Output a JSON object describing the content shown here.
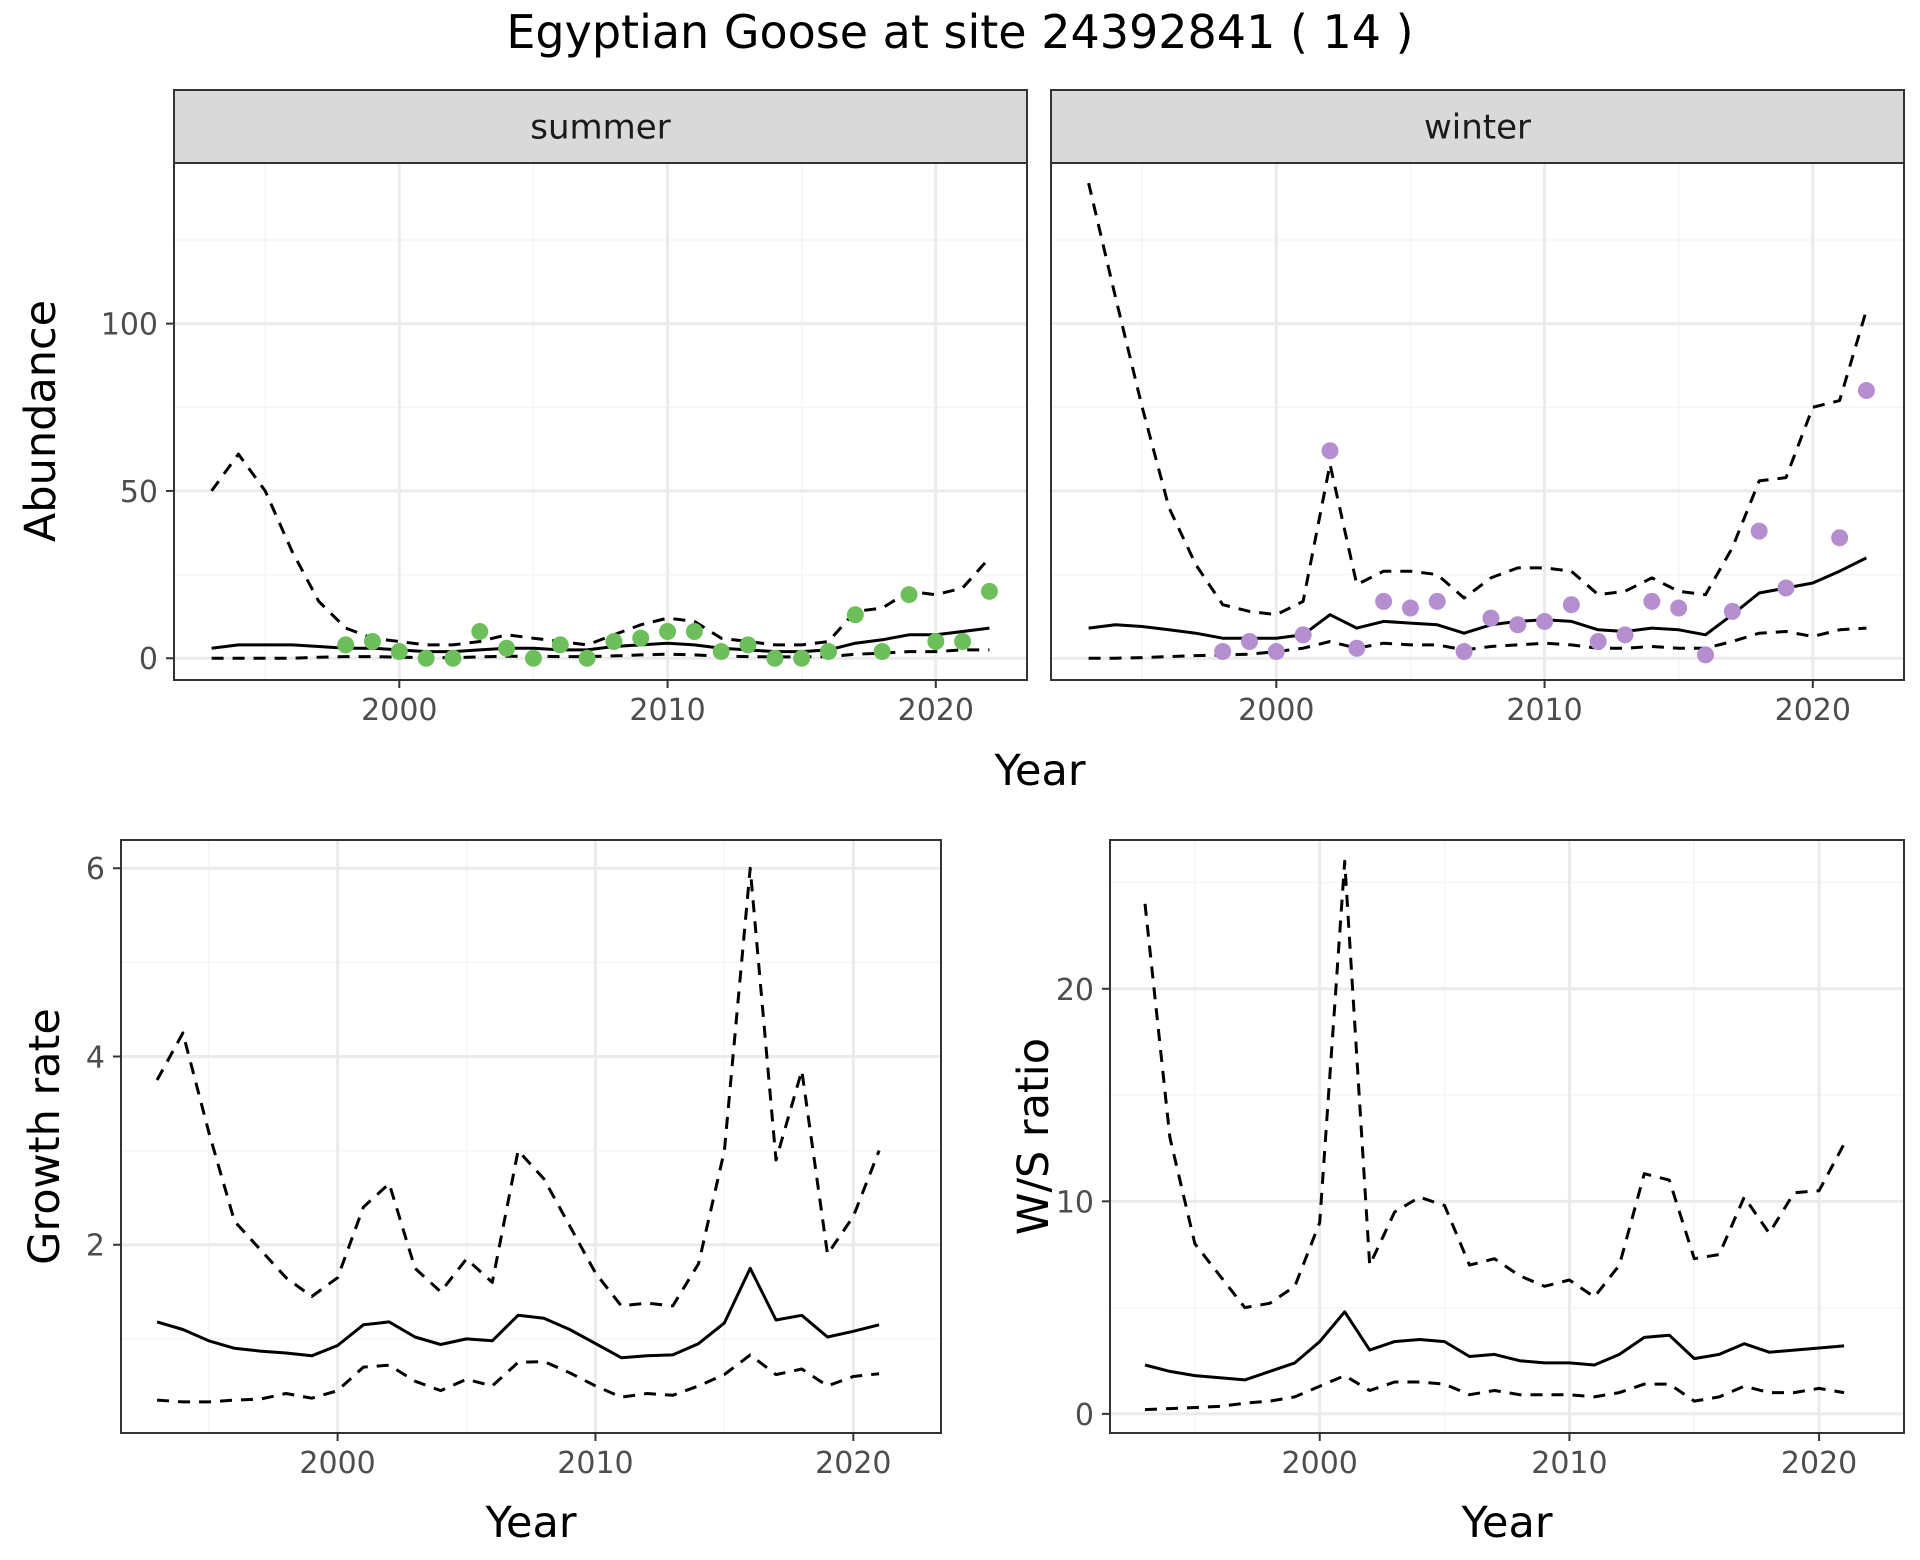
{
  "title": "Egyptian Goose at site 24392841 ( 14 )",
  "colors": {
    "summer_points": "#6dbf5b",
    "winter_points": "#b58ed0",
    "lines": "#000000",
    "strip_bg": "#d9d9d9",
    "grid_major": "#ebebeb",
    "grid_minor": "#f5f5f5",
    "panel_border": "#333333"
  },
  "chart_data": [
    {
      "type": "line",
      "facet": "summer",
      "xlabel": "Year",
      "ylabel": "Abundance",
      "xlim": [
        1991.6,
        2023.4
      ],
      "ylim": [
        -6.5,
        148
      ],
      "x_ticks": [
        2000,
        2010,
        2020
      ],
      "y_ticks": [
        0,
        50,
        100
      ],
      "grid": true,
      "x": [
        1993,
        1994,
        1995,
        1996,
        1997,
        1998,
        1999,
        2000,
        2001,
        2002,
        2003,
        2004,
        2005,
        2006,
        2007,
        2008,
        2009,
        2010,
        2011,
        2012,
        2013,
        2014,
        2015,
        2016,
        2017,
        2018,
        2019,
        2020,
        2021,
        2022
      ],
      "series": [
        {
          "style": "dashed",
          "values": [
            50,
            61,
            50,
            32,
            17,
            9,
            6,
            5,
            4,
            4,
            5,
            7,
            6,
            5,
            4,
            7,
            10,
            12,
            11,
            6,
            5,
            4,
            4,
            5,
            14,
            15,
            20,
            19,
            21,
            30
          ]
        },
        {
          "style": "solid",
          "values": [
            3,
            4,
            4,
            4,
            3.5,
            3,
            3,
            2.5,
            2,
            2,
            2.5,
            3,
            3,
            2.5,
            2.5,
            3.5,
            4,
            4.5,
            4,
            3,
            2.5,
            2,
            2,
            2.5,
            4.5,
            5.5,
            7,
            7,
            8,
            9
          ]
        },
        {
          "style": "dashed",
          "values": [
            0,
            0,
            0,
            0,
            0.3,
            0.5,
            0.5,
            0.3,
            0.2,
            0.2,
            0.4,
            0.6,
            0.6,
            0.5,
            0.5,
            0.7,
            1,
            1.2,
            1,
            0.6,
            0.5,
            0.4,
            0.4,
            0.5,
            1.2,
            1.5,
            2,
            2,
            2.5,
            2.5
          ]
        }
      ],
      "points": {
        "x": [
          1998,
          1999,
          2000,
          2001,
          2002,
          2003,
          2004,
          2005,
          2006,
          2007,
          2008,
          2009,
          2010,
          2011,
          2012,
          2013,
          2014,
          2015,
          2016,
          2017,
          2018,
          2019,
          2020,
          2021,
          2022
        ],
        "y": [
          4,
          5,
          2,
          0,
          0,
          8,
          3,
          0,
          4,
          0,
          5,
          6,
          8,
          8,
          2,
          4,
          0,
          0,
          2,
          13,
          2,
          19,
          5,
          5,
          20
        ]
      }
    },
    {
      "type": "line",
      "facet": "winter",
      "xlabel": "Year",
      "ylabel": "Abundance",
      "xlim": [
        1991.6,
        2023.4
      ],
      "ylim": [
        -6.5,
        148
      ],
      "x_ticks": [
        2000,
        2010,
        2020
      ],
      "y_ticks": [
        0,
        50,
        100
      ],
      "grid": true,
      "x": [
        1993,
        1994,
        1995,
        1996,
        1997,
        1998,
        1999,
        2000,
        2001,
        2002,
        2003,
        2004,
        2005,
        2006,
        2007,
        2008,
        2009,
        2010,
        2011,
        2012,
        2013,
        2014,
        2015,
        2016,
        2017,
        2018,
        2019,
        2020,
        2021,
        2022
      ],
      "series": [
        {
          "style": "dashed",
          "values": [
            142,
            108,
            75,
            45,
            28,
            16,
            14,
            13,
            17,
            58,
            22,
            26,
            26,
            25,
            18,
            24,
            27,
            27,
            26,
            19,
            20,
            24,
            20,
            19,
            33,
            53,
            54,
            75,
            77,
            104
          ]
        },
        {
          "style": "solid",
          "values": [
            9,
            10,
            9.5,
            8.5,
            7.5,
            6,
            6,
            6,
            7,
            13,
            9,
            11,
            10.5,
            10,
            7.5,
            10,
            11,
            11.5,
            11,
            8.5,
            8,
            9,
            8.5,
            7,
            13,
            19.5,
            21,
            22.5,
            26,
            30
          ]
        },
        {
          "style": "dashed",
          "values": [
            0,
            0,
            0.2,
            0.5,
            0.8,
            1,
            1.2,
            2,
            3,
            5,
            3,
            4.5,
            4,
            4,
            2.5,
            3.5,
            4,
            4.5,
            4,
            3,
            3,
            3.5,
            3,
            3,
            5,
            7.5,
            8,
            6.5,
            8.5,
            9
          ]
        }
      ],
      "points": {
        "x": [
          1998,
          1999,
          2000,
          2001,
          2002,
          2003,
          2004,
          2005,
          2006,
          2007,
          2008,
          2009,
          2010,
          2011,
          2012,
          2013,
          2014,
          2015,
          2016,
          2017,
          2018,
          2019,
          2020,
          2021,
          2022
        ],
        "y": [
          2,
          5,
          2,
          7,
          62,
          3,
          17,
          15,
          17,
          2,
          12,
          10,
          11,
          16,
          5,
          7,
          17,
          15,
          1,
          14,
          38,
          21,
          null,
          36,
          80
        ]
      }
    },
    {
      "type": "line",
      "xlabel": "Year",
      "ylabel": "Growth rate",
      "xlim": [
        1991.6,
        2023.4
      ],
      "ylim": [
        0.0,
        6.3
      ],
      "x_ticks": [
        2000,
        2010,
        2020
      ],
      "y_ticks": [
        2,
        4,
        6
      ],
      "grid": true,
      "x": [
        1993,
        1994,
        1995,
        1996,
        1997,
        1998,
        1999,
        2000,
        2001,
        2002,
        2003,
        2004,
        2005,
        2006,
        2007,
        2008,
        2009,
        2010,
        2011,
        2012,
        2013,
        2014,
        2015,
        2016,
        2017,
        2018,
        2019,
        2020,
        2021
      ],
      "series": [
        {
          "style": "dashed",
          "values": [
            3.75,
            4.25,
            3.2,
            2.25,
            1.95,
            1.65,
            1.45,
            1.65,
            2.4,
            2.65,
            1.75,
            1.5,
            1.85,
            1.6,
            3.0,
            2.7,
            2.2,
            1.7,
            1.35,
            1.38,
            1.35,
            1.8,
            3.0,
            6.0,
            2.9,
            3.85,
            1.9,
            2.3,
            3.0
          ]
        },
        {
          "style": "solid",
          "values": [
            1.18,
            1.1,
            0.98,
            0.9,
            0.87,
            0.85,
            0.82,
            0.93,
            1.15,
            1.18,
            1.02,
            0.94,
            1.0,
            0.98,
            1.25,
            1.22,
            1.1,
            0.95,
            0.8,
            0.82,
            0.83,
            0.95,
            1.17,
            1.75,
            1.2,
            1.25,
            1.02,
            1.08,
            1.15
          ]
        },
        {
          "style": "dashed",
          "values": [
            0.35,
            0.33,
            0.33,
            0.35,
            0.36,
            0.42,
            0.37,
            0.45,
            0.7,
            0.72,
            0.55,
            0.45,
            0.57,
            0.5,
            0.75,
            0.76,
            0.64,
            0.5,
            0.38,
            0.42,
            0.4,
            0.5,
            0.62,
            0.83,
            0.62,
            0.68,
            0.5,
            0.6,
            0.63
          ]
        }
      ]
    },
    {
      "type": "line",
      "xlabel": "Year",
      "ylabel": "W/S ratio",
      "xlim": [
        1991.6,
        2023.4
      ],
      "ylim": [
        -0.9,
        27
      ],
      "x_ticks": [
        2000,
        2010,
        2020
      ],
      "y_ticks": [
        0,
        10,
        20
      ],
      "grid": true,
      "x": [
        1993,
        1994,
        1995,
        1996,
        1997,
        1998,
        1999,
        2000,
        2001,
        2002,
        2003,
        2004,
        2005,
        2006,
        2007,
        2008,
        2009,
        2010,
        2011,
        2012,
        2013,
        2014,
        2015,
        2016,
        2017,
        2018,
        2019,
        2020,
        2021
      ],
      "series": [
        {
          "style": "dashed",
          "values": [
            24,
            13,
            8,
            6.5,
            5,
            5.2,
            6,
            9,
            26,
            7,
            9.5,
            10.2,
            9.8,
            7,
            7.3,
            6.5,
            6,
            6.3,
            5.5,
            7,
            11.3,
            11,
            7.3,
            7.5,
            10.2,
            8.5,
            10.4,
            10.5,
            12.7
          ]
        },
        {
          "style": "solid",
          "values": [
            2.3,
            2,
            1.8,
            1.7,
            1.6,
            2,
            2.4,
            3.4,
            4.8,
            3,
            3.4,
            3.5,
            3.4,
            2.7,
            2.8,
            2.5,
            2.4,
            2.4,
            2.3,
            2.8,
            3.6,
            3.7,
            2.6,
            2.8,
            3.3,
            2.9,
            3,
            3.1,
            3.2
          ]
        },
        {
          "style": "dashed",
          "values": [
            0.2,
            0.25,
            0.3,
            0.35,
            0.5,
            0.6,
            0.8,
            1.3,
            1.8,
            1.1,
            1.5,
            1.5,
            1.4,
            0.9,
            1.1,
            0.9,
            0.9,
            0.9,
            0.8,
            1,
            1.4,
            1.4,
            0.6,
            0.8,
            1.3,
            1,
            1,
            1.2,
            1
          ]
        }
      ]
    }
  ]
}
